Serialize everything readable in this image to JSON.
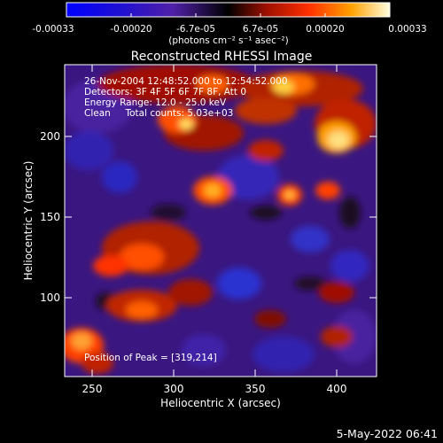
{
  "colorbar": {
    "tick_labels": [
      "-0.00033",
      "-0.00020",
      "-6.7e-05",
      "6.7e-05",
      "0.00020",
      "0.00033"
    ],
    "unit_label": "(photons cm⁻² s⁻¹ asec⁻²)",
    "range": [
      -0.00033,
      0.00033
    ]
  },
  "plot": {
    "title": "Reconstructed RHESSI Image",
    "xlabel": "Heliocentric X (arcsec)",
    "ylabel": "Heliocentric Y (arcsec)",
    "x_ticks": [
      "250",
      "300",
      "350",
      "400"
    ],
    "y_ticks": [
      "100",
      "150",
      "200"
    ],
    "xlim": [
      233,
      425
    ],
    "ylim": [
      55,
      249
    ]
  },
  "annotation": {
    "line1": "26-Nov-2004 12:48:52.000 to 12:54:52.000",
    "line2": "Detectors: 3F 4F 5F 6F 7F 8F, Att 0",
    "line3": "Energy Range: 12.0 - 25.0 keV",
    "line4": "Clean     Total counts: 5.03e+03",
    "peak": "Position of Peak = [319,214]"
  },
  "footer": {
    "date": "5-May-2022 06:41"
  },
  "colors": {
    "background": "#000000",
    "foreground": "#ffffff"
  }
}
